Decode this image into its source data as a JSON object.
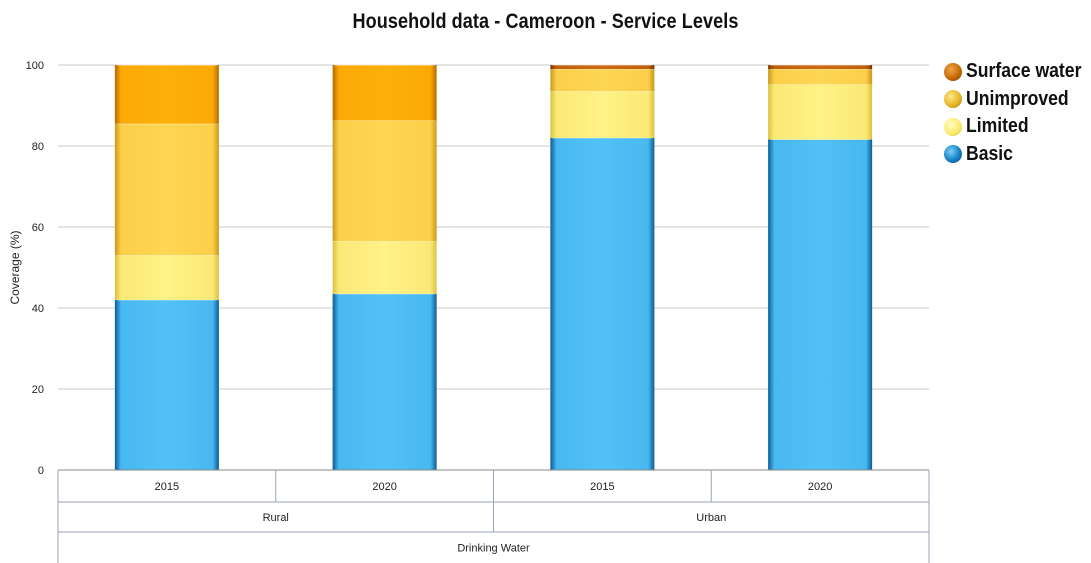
{
  "chart_data": {
    "type": "bar",
    "stacked": true,
    "title": "Household data - Cameroon - Service Levels",
    "ylabel": "Coverage (%)",
    "xlabel": "",
    "ylim": [
      0,
      100
    ],
    "yticks": [
      0,
      20,
      40,
      60,
      80,
      100
    ],
    "grid": true,
    "legend_position": "top-right",
    "categories": [
      "2015",
      "2020",
      "2015",
      "2020"
    ],
    "groups": [
      {
        "label": "Rural",
        "span": 2
      },
      {
        "label": "Urban",
        "span": 2
      }
    ],
    "supergroup": "Drinking Water",
    "series": [
      {
        "name": "Basic",
        "color": "#4dbdf5",
        "values": [
          42,
          43.5,
          82,
          81.6
        ]
      },
      {
        "name": "Limited",
        "color": "#fdee7e",
        "values": [
          11,
          13,
          11.5,
          13.6
        ]
      },
      {
        "name": "Unimproved",
        "color": "#fdd24e",
        "values": [
          32.5,
          29.8,
          5.5,
          3.8
        ]
      },
      {
        "name": "Surface water",
        "color": "#fdae06",
        "values": [
          14.5,
          13.7,
          1,
          1
        ]
      }
    ],
    "legend_colors": {
      "Surface water": "#c76b06",
      "Unimproved": "#e8b82a",
      "Limited": "#fbeb6f",
      "Basic": "#1380c4"
    },
    "urban_surface_color": "#c0600a"
  }
}
